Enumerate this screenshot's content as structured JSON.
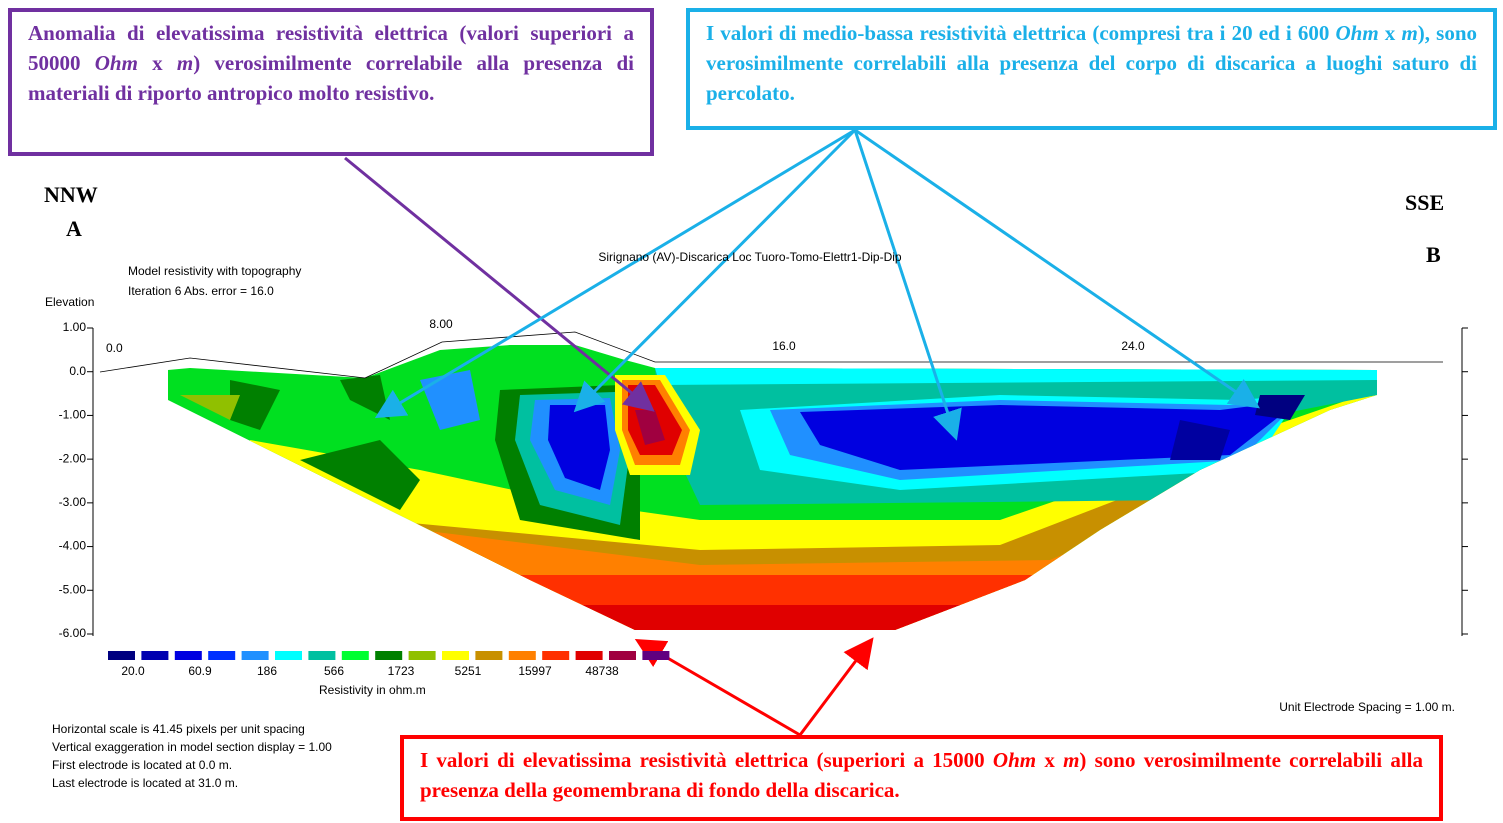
{
  "annotations": [
    {
      "color": "#7030a0",
      "parts": [
        {
          "t": "Anomalia di elevatissima resistività elettrica (valori superiori a 50000 "
        },
        {
          "t": "Ohm",
          "italic": true
        },
        {
          "t": " x "
        },
        {
          "t": "m",
          "italic": true
        },
        {
          "t": ") verosimilmente correlabile alla presenza di materiali di riporto antropico molto resistivo."
        }
      ]
    },
    {
      "color": "#1ab0e8",
      "parts": [
        {
          "t": "I valori di medio-bassa resistività elettrica (compresi tra i 20 ed i 600 "
        },
        {
          "t": "Ohm",
          "italic": true
        },
        {
          "t": " x "
        },
        {
          "t": "m",
          "italic": true
        },
        {
          "t": "), sono verosimilmente correlabili alla presenza del corpo di discarica a luoghi saturo di percolato."
        }
      ]
    },
    {
      "color": "#ff0000",
      "parts": [
        {
          "t": "I valori di elevatissima resistività elettrica (superiori a 15000 "
        },
        {
          "t": "Ohm",
          "italic": true
        },
        {
          "t": " x "
        },
        {
          "t": "m",
          "italic": true
        },
        {
          "t": ") sono verosimilmente correlabili alla presenza della geomembrana di fondo della discarica."
        }
      ]
    }
  ],
  "labels": {
    "left": [
      "NNW",
      "A"
    ],
    "right": [
      "SSE",
      "B"
    ]
  },
  "section": {
    "title": "Sirignano (AV)-Discarica Loc Tuoro-Tomo-Elettr1-Dip-Dip",
    "subtitle": [
      "Model resistivity with topography",
      "Iteration 6 Abs. error = 16.0"
    ],
    "y_label": "Elevation",
    "y_ticks": [
      "1.00",
      "0.0",
      "-1.00",
      "-2.00",
      "-3.00",
      "-4.00",
      "-5.00",
      "-6.00"
    ],
    "x_ticks": [
      "0.0",
      "8.00",
      "16.0",
      "24.0"
    ],
    "colorbar": {
      "colors": [
        "#000080",
        "#0000b0",
        "#0000e0",
        "#0030ff",
        "#2090ff",
        "#00ffff",
        "#00c0a0",
        "#00ff30",
        "#008000",
        "#90c000",
        "#ffff00",
        "#c89000",
        "#ff8000",
        "#ff3000",
        "#e00000",
        "#a00040",
        "#600080"
      ],
      "labels": [
        "20.0",
        "60.9",
        "186",
        "566",
        "1723",
        "5251",
        "15997",
        "48738"
      ],
      "title": "Resistivity in ohm.m"
    },
    "spacing_note": "Unit Electrode Spacing = 1.00 m.",
    "notes": [
      "Horizontal scale is 41.45 pixels per unit spacing",
      "Vertical exaggeration in model section display = 1.00",
      "First electrode is located at 0.0  m.",
      "Last electrode is located at 31.0 m."
    ]
  }
}
